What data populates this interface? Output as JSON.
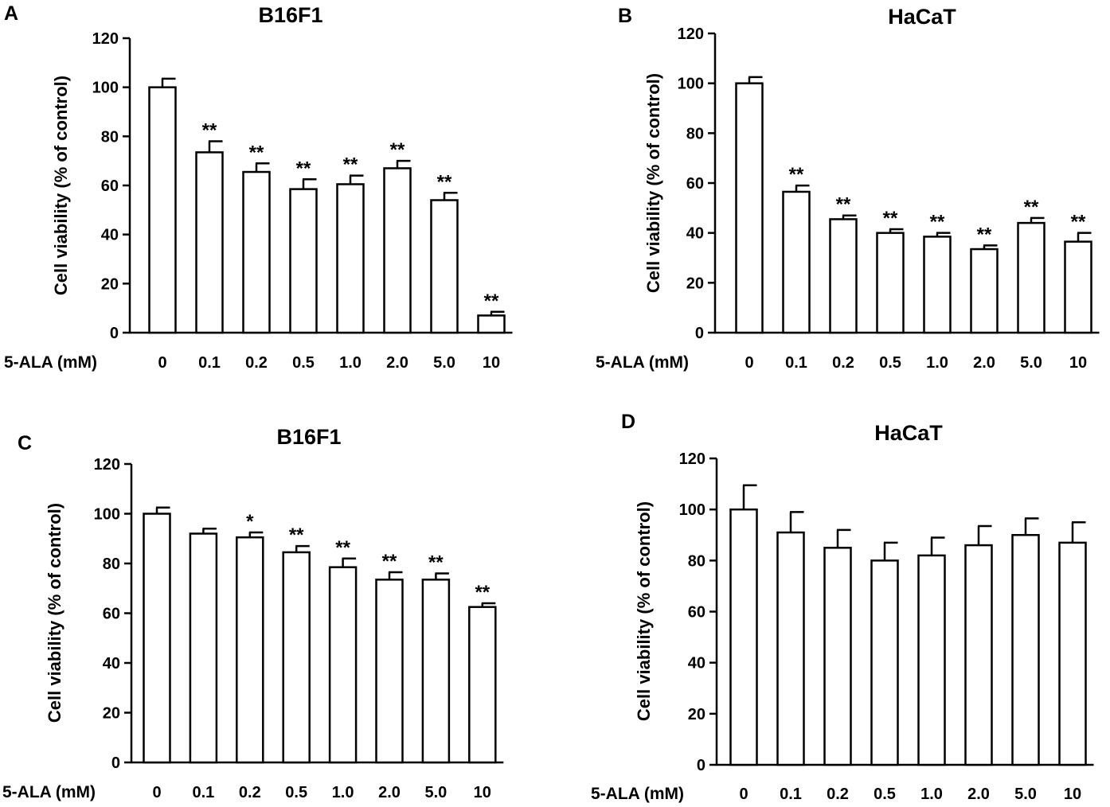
{
  "chart_data": [
    {
      "panel": "A",
      "type": "bar",
      "title": "B16F1",
      "ylabel": "Cell viability (% of control)",
      "xlabel": "5-ALA (mM)",
      "ylim": [
        0,
        120
      ],
      "yticks": [
        "0",
        "20",
        "40",
        "60",
        "80",
        "100",
        "120"
      ],
      "categories": [
        "0",
        "0.1",
        "0.2",
        "0.5",
        "1.0",
        "2.0",
        "5.0",
        "10"
      ],
      "values": [
        100,
        73.5,
        65.5,
        58.5,
        60.5,
        67,
        54,
        7
      ],
      "errors": [
        3.5,
        4.5,
        3.5,
        4,
        3.5,
        3,
        3,
        1.5
      ],
      "significance": [
        "",
        "**",
        "**",
        "**",
        "**",
        "**",
        "**",
        "**"
      ]
    },
    {
      "panel": "B",
      "type": "bar",
      "title": "HaCaT",
      "ylabel": "Cell viability (% of control)",
      "xlabel": "5-ALA (mM)",
      "ylim": [
        0,
        120
      ],
      "yticks": [
        "0",
        "20",
        "40",
        "60",
        "80",
        "100",
        "120"
      ],
      "categories": [
        "0",
        "0.1",
        "0.2",
        "0.5",
        "1.0",
        "2.0",
        "5.0",
        "10"
      ],
      "values": [
        100,
        56.5,
        45.5,
        40,
        38.5,
        33.5,
        44,
        36.5
      ],
      "errors": [
        2.5,
        2.5,
        1.5,
        1.5,
        1.5,
        1.5,
        2,
        3.5
      ],
      "significance": [
        "",
        "**",
        "**",
        "**",
        "**",
        "**",
        "**",
        "**"
      ]
    },
    {
      "panel": "C",
      "type": "bar",
      "title": "B16F1",
      "ylabel": "Cell viability (% of control)",
      "xlabel": "5-ALA (mM)",
      "ylim": [
        0,
        120
      ],
      "yticks": [
        "0",
        "20",
        "40",
        "60",
        "80",
        "100",
        "120"
      ],
      "categories": [
        "0",
        "0.1",
        "0.2",
        "0.5",
        "1.0",
        "2.0",
        "5.0",
        "10"
      ],
      "values": [
        100,
        92,
        90.5,
        84.5,
        78.5,
        73.5,
        73.5,
        62.5
      ],
      "errors": [
        2.5,
        2,
        2,
        2.5,
        3.5,
        3,
        2.5,
        1.5
      ],
      "significance": [
        "",
        "",
        "*",
        "**",
        "**",
        "**",
        "**",
        "**"
      ]
    },
    {
      "panel": "D",
      "type": "bar",
      "title": "HaCaT",
      "ylabel": "Cell viability (% of control)",
      "xlabel": "5-ALA (mM)",
      "ylim": [
        0,
        120
      ],
      "yticks": [
        "0",
        "20",
        "40",
        "60",
        "80",
        "100",
        "120"
      ],
      "categories": [
        "0",
        "0.1",
        "0.2",
        "0.5",
        "1.0",
        "2.0",
        "5.0",
        "10"
      ],
      "values": [
        100,
        91,
        85,
        80,
        82,
        86,
        90,
        87
      ],
      "errors": [
        9.5,
        8,
        7,
        7,
        7,
        7.5,
        6.5,
        8
      ],
      "significance": [
        "",
        "",
        "",
        "",
        "",
        "",
        "",
        ""
      ]
    }
  ]
}
